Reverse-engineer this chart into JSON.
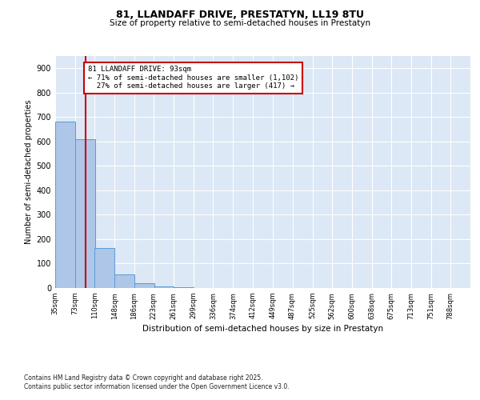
{
  "title1": "81, LLANDAFF DRIVE, PRESTATYN, LL19 8TU",
  "title2": "Size of property relative to semi-detached houses in Prestatyn",
  "xlabel": "Distribution of semi-detached houses by size in Prestatyn",
  "ylabel": "Number of semi-detached properties",
  "bin_labels": [
    "35sqm",
    "73sqm",
    "110sqm",
    "148sqm",
    "186sqm",
    "223sqm",
    "261sqm",
    "299sqm",
    "336sqm",
    "374sqm",
    "412sqm",
    "449sqm",
    "487sqm",
    "525sqm",
    "562sqm",
    "600sqm",
    "638sqm",
    "675sqm",
    "713sqm",
    "751sqm",
    "788sqm"
  ],
  "bin_edges": [
    35,
    73,
    110,
    148,
    186,
    223,
    261,
    299,
    336,
    374,
    412,
    449,
    487,
    525,
    562,
    600,
    638,
    675,
    713,
    751,
    788
  ],
  "bar_heights": [
    680,
    610,
    165,
    55,
    20,
    5,
    2,
    1,
    0,
    0,
    0,
    0,
    0,
    0,
    0,
    0,
    0,
    0,
    0,
    0
  ],
  "bar_color": "#aec6e8",
  "bar_edgecolor": "#5b9bd5",
  "property_size": 93,
  "property_label": "81 LLANDAFF DRIVE: 93sqm",
  "smaller_pct": "71%",
  "smaller_count": "1,102",
  "larger_pct": "27%",
  "larger_count": "417",
  "vline_color": "#cc0000",
  "annotation_box_color": "#cc0000",
  "ylim": [
    0,
    950
  ],
  "yticks": [
    0,
    100,
    200,
    300,
    400,
    500,
    600,
    700,
    800,
    900
  ],
  "footer": "Contains HM Land Registry data © Crown copyright and database right 2025.\nContains public sector information licensed under the Open Government Licence v3.0.",
  "bg_color": "#dce8f5",
  "fig_bg": "#ffffff"
}
